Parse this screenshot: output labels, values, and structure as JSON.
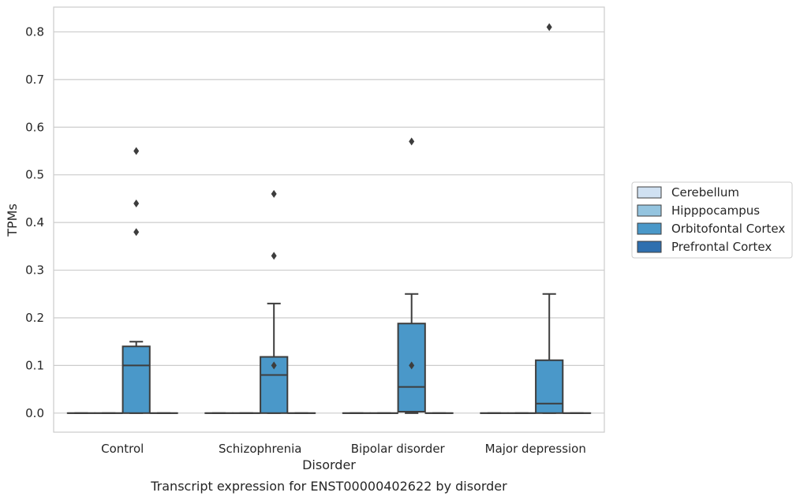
{
  "chart_data": {
    "type": "box",
    "title": "",
    "caption": "Transcript expression for ENST00000402622 by disorder",
    "xlabel": "Disorder",
    "ylabel": "TPMs",
    "categories": [
      "Control",
      "Schizophrenia",
      "Bipolar disorder",
      "Major depression"
    ],
    "ylim": [
      -0.04,
      0.852
    ],
    "yticks": [
      "0.0",
      "0.1",
      "0.2",
      "0.3",
      "0.4",
      "0.5",
      "0.6",
      "0.7",
      "0.8"
    ],
    "grid": "horizontal",
    "legend_position": "right",
    "series": [
      {
        "name": "Cerebellum",
        "color": "#d0e1f2",
        "boxes": [
          {
            "q1": 0,
            "median": 0,
            "q3": 0,
            "whisker_low": 0,
            "whisker_high": 0,
            "outliers": []
          },
          {
            "q1": 0,
            "median": 0,
            "q3": 0,
            "whisker_low": 0,
            "whisker_high": 0,
            "outliers": []
          },
          {
            "q1": 0,
            "median": 0,
            "q3": 0,
            "whisker_low": 0,
            "whisker_high": 0,
            "outliers": []
          },
          {
            "q1": 0,
            "median": 0,
            "q3": 0,
            "whisker_low": 0,
            "whisker_high": 0,
            "outliers": []
          }
        ]
      },
      {
        "name": "Hipppocampus",
        "color": "#94c4df",
        "boxes": [
          {
            "q1": 0,
            "median": 0,
            "q3": 0,
            "whisker_low": 0,
            "whisker_high": 0,
            "outliers": []
          },
          {
            "q1": 0,
            "median": 0,
            "q3": 0,
            "whisker_low": 0,
            "whisker_high": 0,
            "outliers": []
          },
          {
            "q1": 0,
            "median": 0,
            "q3": 0,
            "whisker_low": 0,
            "whisker_high": 0,
            "outliers": []
          },
          {
            "q1": 0,
            "median": 0,
            "q3": 0,
            "whisker_low": 0,
            "whisker_high": 0,
            "outliers": []
          }
        ]
      },
      {
        "name": "Orbitofontal Cortex",
        "color": "#4a98c9",
        "boxes": [
          {
            "q1": 0,
            "median": 0.1,
            "q3": 0.14,
            "whisker_low": 0,
            "whisker_high": 0.15,
            "outliers": [
              0.38,
              0.44,
              0.55
            ]
          },
          {
            "q1": 0,
            "median": 0.08,
            "q3": 0.118,
            "whisker_low": 0,
            "whisker_high": 0.23,
            "outliers": [
              0.1,
              0.33,
              0.46
            ]
          },
          {
            "q1": 0.003,
            "median": 0.055,
            "q3": 0.188,
            "whisker_low": 0,
            "whisker_high": 0.25,
            "outliers": [
              0.1,
              0.57
            ]
          },
          {
            "q1": 0,
            "median": 0.02,
            "q3": 0.111,
            "whisker_low": 0,
            "whisker_high": 0.25,
            "outliers": [
              0.81
            ]
          }
        ]
      },
      {
        "name": "Prefrontal Cortex",
        "color": "#2e6faf",
        "boxes": [
          {
            "q1": 0,
            "median": 0,
            "q3": 0,
            "whisker_low": 0,
            "whisker_high": 0,
            "outliers": []
          },
          {
            "q1": 0,
            "median": 0,
            "q3": 0,
            "whisker_low": 0,
            "whisker_high": 0,
            "outliers": []
          },
          {
            "q1": 0,
            "median": 0,
            "q3": 0,
            "whisker_low": 0,
            "whisker_high": 0,
            "outliers": []
          },
          {
            "q1": 0,
            "median": 0,
            "q3": 0,
            "whisker_low": 0,
            "whisker_high": 0,
            "outliers": []
          }
        ]
      }
    ]
  }
}
